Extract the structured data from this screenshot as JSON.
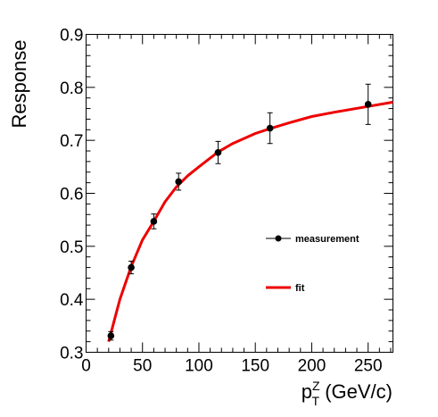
{
  "chart_data": {
    "type": "scatter",
    "ylabel": "Response",
    "xlabel_main": "p",
    "xlabel_sup": "Z",
    "xlabel_sub": "T",
    "xlabel_unit": " (GeV/c)",
    "xlim": [
      0,
      272
    ],
    "ylim": [
      0.3,
      0.9
    ],
    "x_ticks": [
      0,
      50,
      100,
      150,
      200,
      250
    ],
    "x_tick_labels": [
      "0",
      "50",
      "100",
      "150",
      "200",
      "250"
    ],
    "y_ticks": [
      0.3,
      0.4,
      0.5,
      0.6,
      0.7,
      0.8,
      0.9
    ],
    "y_tick_labels": [
      "0.3",
      "0.4",
      "0.5",
      "0.6",
      "0.7",
      "0.8",
      "0.9"
    ],
    "grid": false,
    "legend_position": "right-center",
    "series": [
      {
        "name": "measurement",
        "kind": "points",
        "color": "#000000",
        "x": [
          22,
          40,
          60,
          82,
          117,
          163,
          250
        ],
        "y": [
          0.331,
          0.46,
          0.547,
          0.622,
          0.677,
          0.723,
          0.768
        ],
        "err": [
          0.008,
          0.012,
          0.014,
          0.016,
          0.021,
          0.029,
          0.038
        ]
      },
      {
        "name": "fit",
        "kind": "line",
        "color": "#ee0000",
        "x": [
          20,
          30,
          40,
          50,
          60,
          70,
          80,
          90,
          100,
          117,
          130,
          150,
          163,
          180,
          200,
          220,
          250,
          272
        ],
        "y": [
          0.32,
          0.4,
          0.462,
          0.512,
          0.547,
          0.584,
          0.612,
          0.633,
          0.65,
          0.678,
          0.694,
          0.713,
          0.722,
          0.733,
          0.745,
          0.753,
          0.764,
          0.772
        ]
      }
    ]
  }
}
